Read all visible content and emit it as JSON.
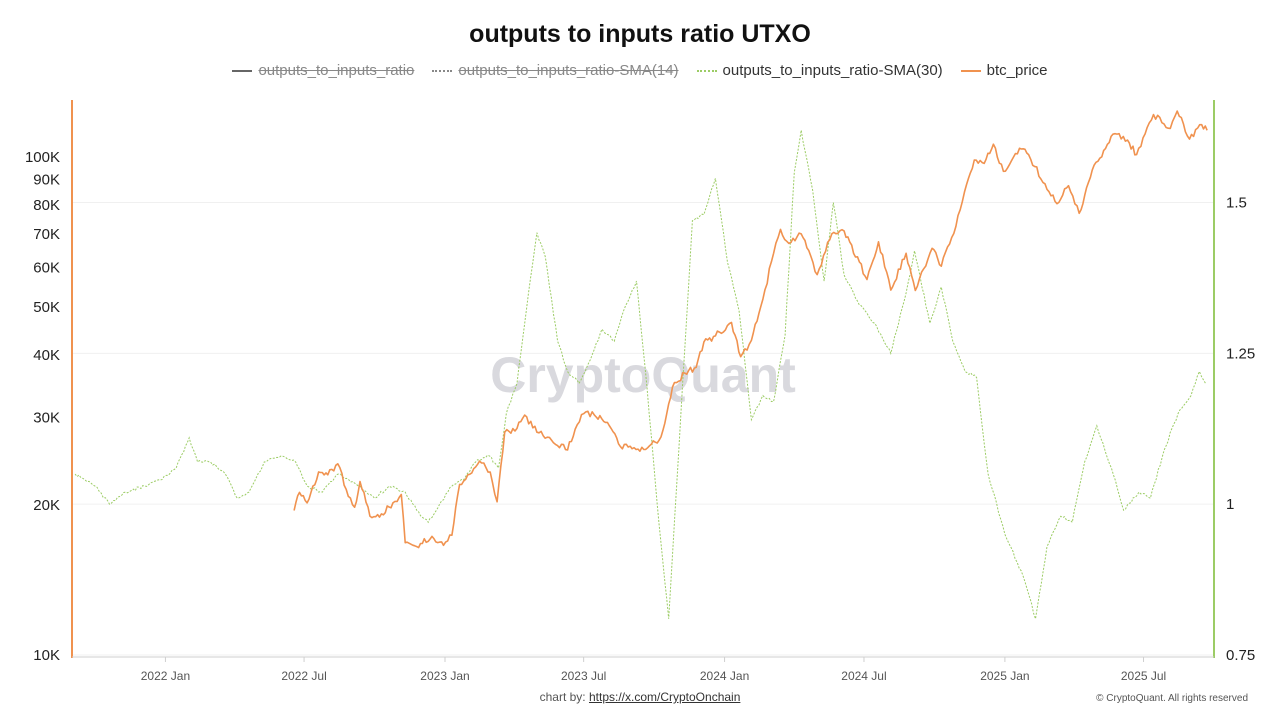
{
  "chart_data": {
    "type": "line",
    "title": "outputs to inputs ratio UTXO",
    "legend": [
      {
        "name": "outputs_to_inputs_ratio",
        "color": "#666666",
        "style": "solid",
        "visible": false
      },
      {
        "name": "outputs_to_inputs_ratio-SMA(14)",
        "color": "#888888",
        "style": "dotted",
        "visible": false
      },
      {
        "name": "outputs_to_inputs_ratio-SMA(30)",
        "color": "#9ccc65",
        "style": "dotted",
        "visible": true
      },
      {
        "name": "btc_price",
        "color": "#f0924f",
        "style": "solid",
        "visible": true
      }
    ],
    "legend_position": "top-center",
    "x_axis": {
      "type": "date",
      "range": [
        "2021-09-01",
        "2025-10-01"
      ],
      "ticks": [
        {
          "date": "2022-01-01",
          "label": "2022 Jan"
        },
        {
          "date": "2022-07-01",
          "label": "2022 Jul"
        },
        {
          "date": "2023-01-01",
          "label": "2023 Jan"
        },
        {
          "date": "2023-07-01",
          "label": "2023 Jul"
        },
        {
          "date": "2024-01-01",
          "label": "2024 Jan"
        },
        {
          "date": "2024-07-01",
          "label": "2024 Jul"
        },
        {
          "date": "2025-01-01",
          "label": "2025 Jan"
        },
        {
          "date": "2025-07-01",
          "label": "2025 Jul"
        }
      ]
    },
    "y_left": {
      "scale": "log",
      "range": [
        10000,
        130000
      ],
      "ticks": [
        {
          "value": 10000,
          "label": "10K"
        },
        {
          "value": 20000,
          "label": "20K"
        },
        {
          "value": 30000,
          "label": "30K"
        },
        {
          "value": 40000,
          "label": "40K"
        },
        {
          "value": 50000,
          "label": "50K"
        },
        {
          "value": 60000,
          "label": "60K"
        },
        {
          "value": 70000,
          "label": "70K"
        },
        {
          "value": 80000,
          "label": "80K"
        },
        {
          "value": 90000,
          "label": "90K"
        },
        {
          "value": 100000,
          "label": "100K"
        }
      ]
    },
    "y_right": {
      "scale": "linear",
      "range": [
        0.75,
        1.67
      ],
      "ticks": [
        {
          "value": 0.75,
          "label": "0.75"
        },
        {
          "value": 1.0,
          "label": "1"
        },
        {
          "value": 1.25,
          "label": "1.25"
        },
        {
          "value": 1.5,
          "label": "1.5"
        }
      ]
    },
    "grid": "horizontal",
    "series": [
      {
        "name": "outputs_to_inputs_ratio-SMA(30)",
        "axis": "right",
        "color": "#9ccc65",
        "points": [
          [
            "2021-09-05",
            1.05
          ],
          [
            "2021-10-01",
            1.03
          ],
          [
            "2021-10-20",
            1.0
          ],
          [
            "2021-11-10",
            1.02
          ],
          [
            "2021-12-05",
            1.03
          ],
          [
            "2021-12-25",
            1.04
          ],
          [
            "2022-01-15",
            1.06
          ],
          [
            "2022-02-01",
            1.11
          ],
          [
            "2022-02-12",
            1.07
          ],
          [
            "2022-03-01",
            1.07
          ],
          [
            "2022-03-20",
            1.05
          ],
          [
            "2022-04-05",
            1.01
          ],
          [
            "2022-04-20",
            1.02
          ],
          [
            "2022-05-10",
            1.07
          ],
          [
            "2022-06-01",
            1.08
          ],
          [
            "2022-06-20",
            1.07
          ],
          [
            "2022-07-05",
            1.03
          ],
          [
            "2022-07-25",
            1.02
          ],
          [
            "2022-08-15",
            1.05
          ],
          [
            "2022-09-10",
            1.03
          ],
          [
            "2022-10-01",
            1.01
          ],
          [
            "2022-10-20",
            1.03
          ],
          [
            "2022-11-10",
            1.02
          ],
          [
            "2022-11-25",
            0.99
          ],
          [
            "2022-12-10",
            0.97
          ],
          [
            "2022-12-25",
            1.0
          ],
          [
            "2023-01-10",
            1.03
          ],
          [
            "2023-01-25",
            1.04
          ],
          [
            "2023-02-10",
            1.07
          ],
          [
            "2023-02-28",
            1.08
          ],
          [
            "2023-03-12",
            1.06
          ],
          [
            "2023-03-22",
            1.15
          ],
          [
            "2023-04-05",
            1.2
          ],
          [
            "2023-04-20",
            1.35
          ],
          [
            "2023-05-01",
            1.45
          ],
          [
            "2023-05-12",
            1.41
          ],
          [
            "2023-05-28",
            1.27
          ],
          [
            "2023-06-10",
            1.22
          ],
          [
            "2023-06-25",
            1.2
          ],
          [
            "2023-07-10",
            1.24
          ],
          [
            "2023-07-25",
            1.29
          ],
          [
            "2023-08-10",
            1.27
          ],
          [
            "2023-08-25",
            1.33
          ],
          [
            "2023-09-08",
            1.37
          ],
          [
            "2023-09-22",
            1.19
          ],
          [
            "2023-10-05",
            1.0
          ],
          [
            "2023-10-20",
            0.81
          ],
          [
            "2023-11-05",
            1.15
          ],
          [
            "2023-11-20",
            1.47
          ],
          [
            "2023-12-05",
            1.48
          ],
          [
            "2023-12-20",
            1.54
          ],
          [
            "2024-01-05",
            1.4
          ],
          [
            "2024-01-20",
            1.32
          ],
          [
            "2024-02-05",
            1.14
          ],
          [
            "2024-02-20",
            1.18
          ],
          [
            "2024-03-05",
            1.17
          ],
          [
            "2024-03-20",
            1.28
          ],
          [
            "2024-04-01",
            1.55
          ],
          [
            "2024-04-10",
            1.62
          ],
          [
            "2024-04-25",
            1.52
          ],
          [
            "2024-05-10",
            1.37
          ],
          [
            "2024-05-22",
            1.5
          ],
          [
            "2024-06-05",
            1.38
          ],
          [
            "2024-06-25",
            1.33
          ],
          [
            "2024-07-15",
            1.3
          ],
          [
            "2024-08-05",
            1.25
          ],
          [
            "2024-08-25",
            1.35
          ],
          [
            "2024-09-05",
            1.42
          ],
          [
            "2024-09-25",
            1.3
          ],
          [
            "2024-10-10",
            1.36
          ],
          [
            "2024-10-25",
            1.27
          ],
          [
            "2024-11-10",
            1.22
          ],
          [
            "2024-11-25",
            1.21
          ],
          [
            "2024-12-10",
            1.05
          ],
          [
            "2025-01-01",
            0.95
          ],
          [
            "2025-01-25",
            0.88
          ],
          [
            "2025-02-10",
            0.81
          ],
          [
            "2025-02-25",
            0.93
          ],
          [
            "2025-03-15",
            0.98
          ],
          [
            "2025-03-30",
            0.97
          ],
          [
            "2025-04-15",
            1.07
          ],
          [
            "2025-05-01",
            1.13
          ],
          [
            "2025-05-20",
            1.06
          ],
          [
            "2025-06-05",
            0.99
          ],
          [
            "2025-06-25",
            1.02
          ],
          [
            "2025-07-10",
            1.01
          ],
          [
            "2025-07-28",
            1.09
          ],
          [
            "2025-08-15",
            1.15
          ],
          [
            "2025-09-01",
            1.18
          ],
          [
            "2025-09-12",
            1.22
          ],
          [
            "2025-09-20",
            1.2
          ]
        ]
      },
      {
        "name": "btc_price",
        "axis": "left",
        "color": "#f0924f",
        "points": [
          [
            "2022-06-18",
            19500
          ],
          [
            "2022-06-25",
            21200
          ],
          [
            "2022-07-05",
            20200
          ],
          [
            "2022-07-20",
            23300
          ],
          [
            "2022-08-01",
            23000
          ],
          [
            "2022-08-14",
            24200
          ],
          [
            "2022-08-25",
            21500
          ],
          [
            "2022-09-05",
            19800
          ],
          [
            "2022-09-12",
            22300
          ],
          [
            "2022-09-25",
            19000
          ],
          [
            "2022-10-10",
            19200
          ],
          [
            "2022-10-25",
            20200
          ],
          [
            "2022-11-05",
            21000
          ],
          [
            "2022-11-10",
            16800
          ],
          [
            "2022-11-25",
            16500
          ],
          [
            "2022-12-15",
            17300
          ],
          [
            "2022-12-30",
            16600
          ],
          [
            "2023-01-10",
            17400
          ],
          [
            "2023-01-20",
            22000
          ],
          [
            "2023-02-05",
            23200
          ],
          [
            "2023-02-15",
            24500
          ],
          [
            "2023-03-01",
            23300
          ],
          [
            "2023-03-10",
            20300
          ],
          [
            "2023-03-20",
            28000
          ],
          [
            "2023-04-05",
            28500
          ],
          [
            "2023-04-15",
            30300
          ],
          [
            "2023-05-01",
            28000
          ],
          [
            "2023-05-20",
            27000
          ],
          [
            "2023-06-10",
            25800
          ],
          [
            "2023-06-20",
            28400
          ],
          [
            "2023-07-01",
            30500
          ],
          [
            "2023-07-15",
            30300
          ],
          [
            "2023-08-01",
            29300
          ],
          [
            "2023-08-18",
            26200
          ],
          [
            "2023-09-10",
            25900
          ],
          [
            "2023-09-25",
            26300
          ],
          [
            "2023-10-10",
            27400
          ],
          [
            "2023-10-25",
            34500
          ],
          [
            "2023-11-10",
            36800
          ],
          [
            "2023-11-25",
            37800
          ],
          [
            "2023-12-05",
            42500
          ],
          [
            "2023-12-20",
            43700
          ],
          [
            "2024-01-10",
            46500
          ],
          [
            "2024-01-22",
            39700
          ],
          [
            "2024-02-05",
            42800
          ],
          [
            "2024-02-20",
            51800
          ],
          [
            "2024-03-05",
            64000
          ],
          [
            "2024-03-14",
            71500
          ],
          [
            "2024-03-25",
            67000
          ],
          [
            "2024-04-10",
            70000
          ],
          [
            "2024-04-20",
            64800
          ],
          [
            "2024-05-01",
            58000
          ],
          [
            "2024-05-20",
            70000
          ],
          [
            "2024-06-05",
            71000
          ],
          [
            "2024-06-25",
            61500
          ],
          [
            "2024-07-05",
            56700
          ],
          [
            "2024-07-20",
            67500
          ],
          [
            "2024-08-05",
            54000
          ],
          [
            "2024-08-25",
            64000
          ],
          [
            "2024-09-06",
            53900
          ],
          [
            "2024-09-28",
            65500
          ],
          [
            "2024-10-10",
            60300
          ],
          [
            "2024-10-29",
            72500
          ],
          [
            "2024-11-12",
            88000
          ],
          [
            "2024-11-22",
            98500
          ],
          [
            "2024-12-05",
            97000
          ],
          [
            "2024-12-17",
            106000
          ],
          [
            "2024-12-30",
            93500
          ],
          [
            "2025-01-20",
            104000
          ],
          [
            "2025-02-01",
            101000
          ],
          [
            "2025-02-25",
            86000
          ],
          [
            "2025-03-10",
            80500
          ],
          [
            "2025-03-25",
            87500
          ],
          [
            "2025-04-08",
            77000
          ],
          [
            "2025-04-25",
            94000
          ],
          [
            "2025-05-10",
            103000
          ],
          [
            "2025-05-22",
            111000
          ],
          [
            "2025-06-10",
            108000
          ],
          [
            "2025-06-22",
            101000
          ],
          [
            "2025-07-14",
            121500
          ],
          [
            "2025-08-05",
            114000
          ],
          [
            "2025-08-14",
            123500
          ],
          [
            "2025-08-30",
            108500
          ],
          [
            "2025-09-15",
            116000
          ],
          [
            "2025-09-22",
            113000
          ]
        ]
      }
    ],
    "watermark": "CryptoQuant"
  },
  "footer": {
    "credit_label": "chart by:",
    "credit_link": "https://x.com/CryptoOnchain",
    "copyright": "© CryptoQuant. All rights reserved"
  }
}
